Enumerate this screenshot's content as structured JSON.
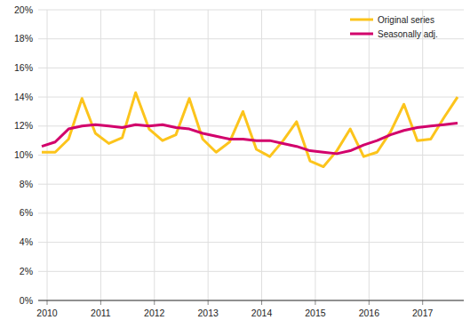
{
  "chart_data": {
    "type": "line",
    "categories": [
      "2010",
      null,
      null,
      null,
      "2011",
      null,
      null,
      null,
      "2012",
      null,
      null,
      null,
      "2013",
      null,
      null,
      null,
      "2014",
      null,
      null,
      null,
      "2015",
      null,
      null,
      null,
      "2016",
      null,
      null,
      null,
      "2017",
      null,
      null,
      null
    ],
    "series": [
      {
        "name": "Original series",
        "color": "#fcc41c",
        "values": [
          10.2,
          10.2,
          11.1,
          13.9,
          11.5,
          10.8,
          11.2,
          14.3,
          11.8,
          11.0,
          11.4,
          13.9,
          11.1,
          10.2,
          10.9,
          13.0,
          10.4,
          9.9,
          11.0,
          12.3,
          9.6,
          9.2,
          10.3,
          11.8,
          9.9,
          10.2,
          11.6,
          13.5,
          11.0,
          11.1,
          12.6,
          14.0
        ]
      },
      {
        "name": "Seasonally adj.",
        "color": "#d2006b",
        "values": [
          10.6,
          10.9,
          11.8,
          12.0,
          12.1,
          12.0,
          11.9,
          12.1,
          12.0,
          12.1,
          11.9,
          11.8,
          11.5,
          11.3,
          11.1,
          11.1,
          11.0,
          11.0,
          10.8,
          10.6,
          10.3,
          10.2,
          10.1,
          10.3,
          10.7,
          11.0,
          11.4,
          11.7,
          11.9,
          12.0,
          12.1,
          12.2
        ]
      }
    ],
    "ylim": [
      0,
      20
    ],
    "yticks": [
      {
        "value": 0,
        "label": "0%"
      },
      {
        "value": 2,
        "label": "2%"
      },
      {
        "value": 4,
        "label": "4%"
      },
      {
        "value": 6,
        "label": "6%"
      },
      {
        "value": 8,
        "label": "8%"
      },
      {
        "value": 10,
        "label": "10%"
      },
      {
        "value": 12,
        "label": "12%"
      },
      {
        "value": 14,
        "label": "14%"
      },
      {
        "value": 16,
        "label": "16%"
      },
      {
        "value": 18,
        "label": "18%"
      },
      {
        "value": 20,
        "label": "20%"
      }
    ],
    "grid": true,
    "legend": "top-right"
  }
}
